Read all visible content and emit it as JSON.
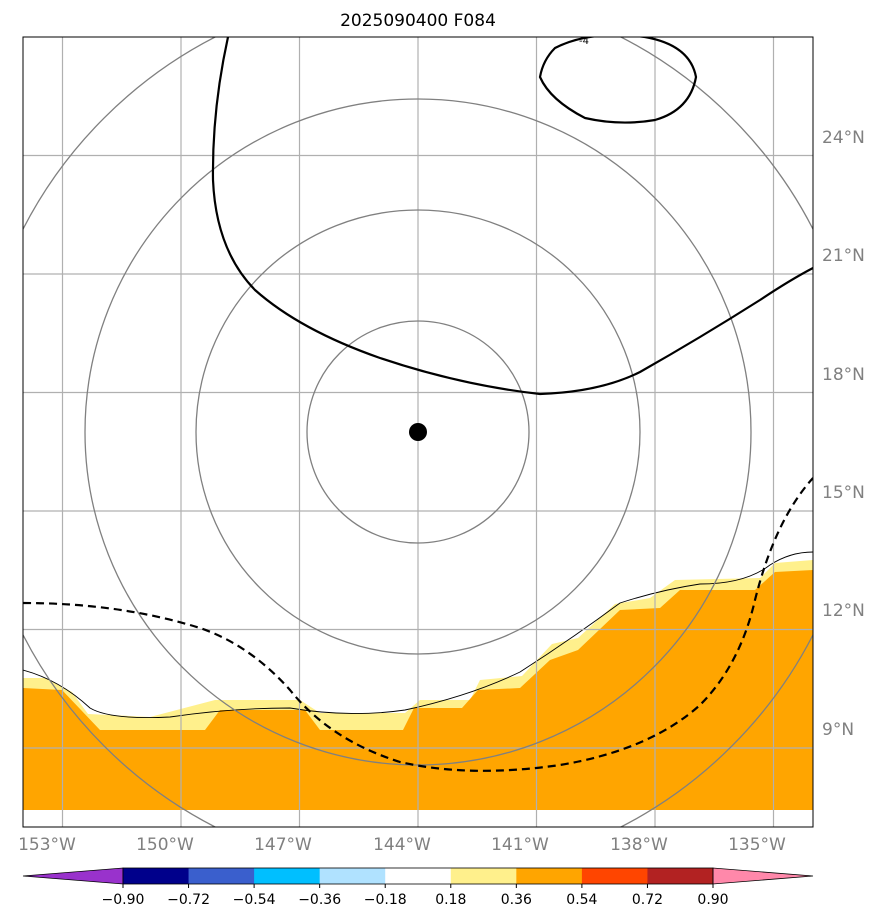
{
  "title": "2025090400 F084",
  "map": {
    "lon_range": [
      -154,
      -134
    ],
    "lat_range": [
      7,
      27
    ],
    "lon_gridlines": [
      -153,
      -150,
      -147,
      -144,
      -141,
      -138,
      -135
    ],
    "lat_gridlines": [
      9,
      12,
      15,
      18,
      21,
      24
    ],
    "center_marker": {
      "lon": -143.6,
      "lat": 16.5
    },
    "range_ring_radii_px": [],
    "contour_label": "-4",
    "colors": {
      "gridline": "#b0b0b0",
      "range_ring": "#808080",
      "fill_main": "#ffa500",
      "fill_light": "#fff08c",
      "contour": "#000000"
    }
  },
  "lat_labels": [
    "9°N",
    "12°N",
    "15°N",
    "18°N",
    "21°N",
    "24°N"
  ],
  "lon_labels": [
    "153°W",
    "150°W",
    "147°W",
    "144°W",
    "141°W",
    "138°W",
    "135°W"
  ],
  "colorbar": {
    "colors": [
      "#9932cc",
      "#00008b",
      "#3a5fcd",
      "#00bfff",
      "#b0e2ff",
      "#ffffff",
      "#fff08c",
      "#ffa500",
      "#ff4500",
      "#b22222",
      "#ff88aa"
    ],
    "tick_labels": [
      "−0.90",
      "−0.72",
      "−0.54",
      "−0.36",
      "−0.18",
      "0.18",
      "0.36",
      "0.54",
      "0.72",
      "0.90"
    ]
  }
}
